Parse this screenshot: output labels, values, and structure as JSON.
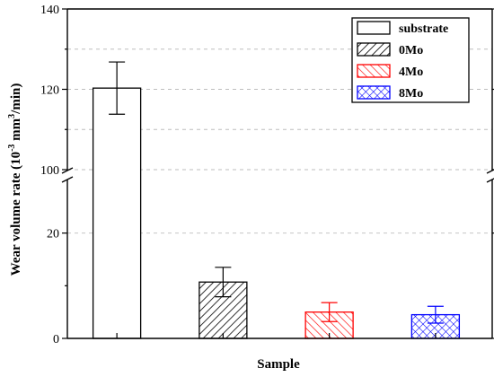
{
  "chart_data": {
    "type": "bar",
    "xlabel": "Sample",
    "ylabel_main": "Wear volume rate (10",
    "ylabel_exp1": "-3",
    "ylabel_mid": " mm",
    "ylabel_exp2": "3",
    "ylabel_tail": "/min)",
    "y_axis_break": true,
    "ylim_lower": [
      0,
      30
    ],
    "ylim_upper": [
      100,
      140
    ],
    "yticks": [
      0,
      20,
      100,
      120,
      140
    ],
    "grid": true,
    "legend_placement": "top-right",
    "categories": [
      "substrate",
      "0Mo",
      "4Mo",
      "8Mo"
    ],
    "values": [
      120.3,
      10.7,
      5.0,
      4.5
    ],
    "errors": [
      6.5,
      2.8,
      1.8,
      1.6
    ],
    "series": [
      {
        "name": "substrate",
        "value": 120.3,
        "error": 6.5,
        "color": "#000000",
        "pattern": "none"
      },
      {
        "name": "0Mo",
        "value": 10.7,
        "error": 2.8,
        "color": "#000000",
        "pattern": "diagonal"
      },
      {
        "name": "4Mo",
        "value": 5.0,
        "error": 1.8,
        "color": "#ff0000",
        "pattern": "diagonal-reverse"
      },
      {
        "name": "8Mo",
        "value": 4.5,
        "error": 1.6,
        "color": "#0000ff",
        "pattern": "crosshatch"
      }
    ]
  }
}
